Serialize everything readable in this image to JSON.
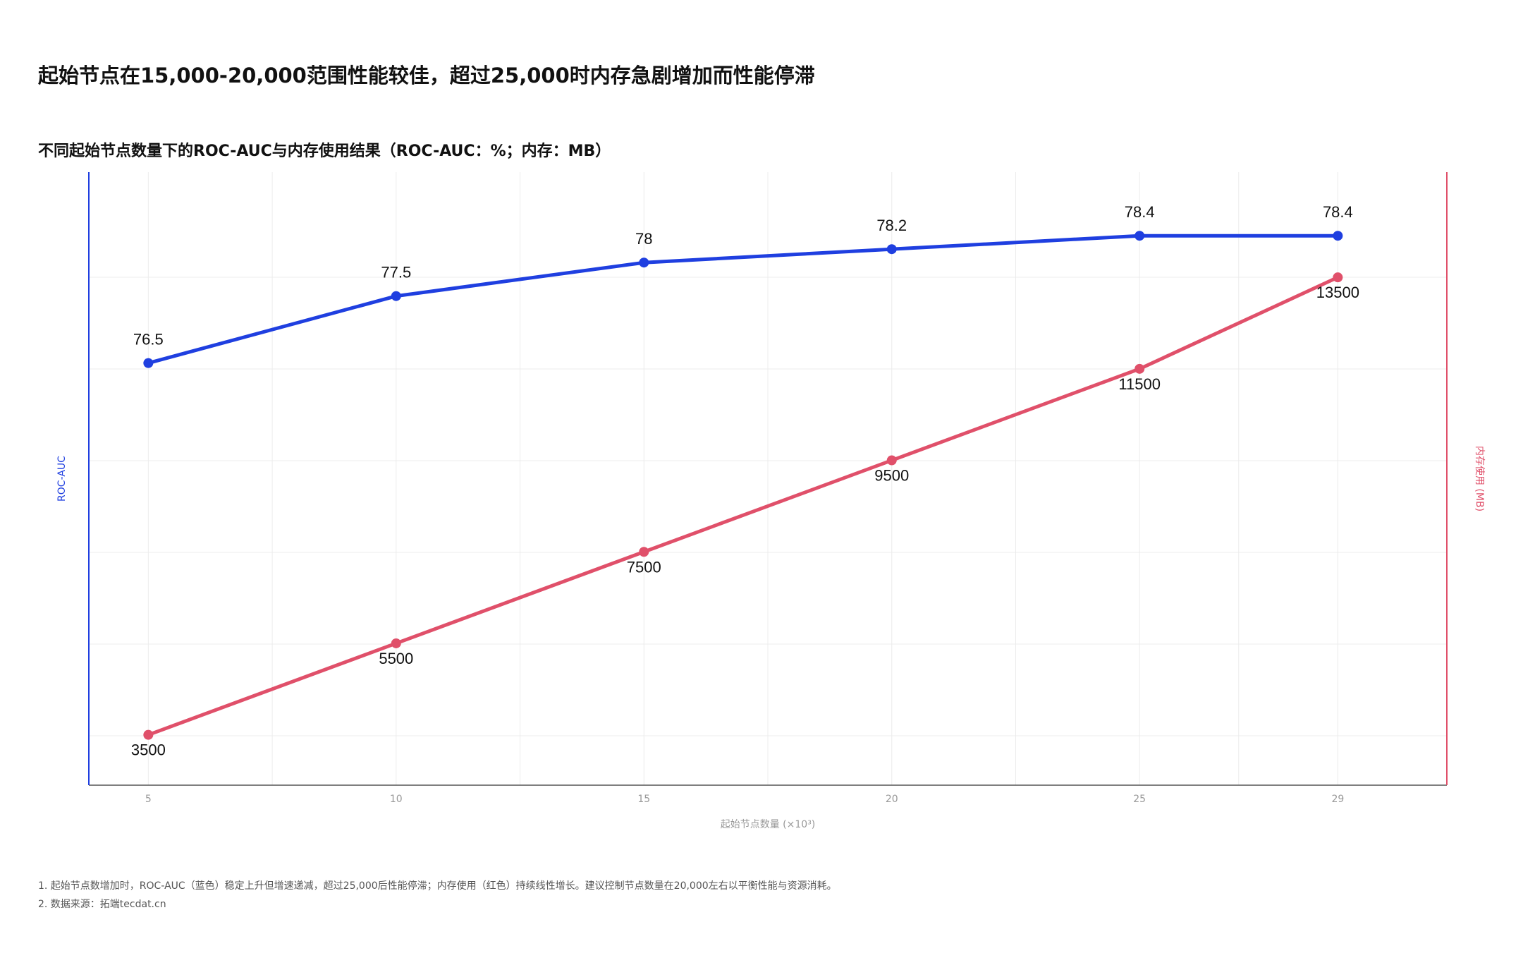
{
  "title": "起始节点在15,000-20,000范围性能较佳，超过25,000时内存急剧增加而性能停滞",
  "notes": [
    "1. 起始节点数增加时，ROC-AUC（蓝色）稳定上升但增速递减，超过25,000后性能停滞；内存使用（红色）持续线性增长。建议控制节点数量在20,000左右以平衡性能与资源消耗。",
    "2. 数据来源：拓端tecdat.cn"
  ],
  "colors": {
    "roc": "#1f3fe0",
    "memory": "#e0506a",
    "grid": "#ececec",
    "axis_text": "#999999"
  },
  "chart_data": {
    "type": "line",
    "title": "不同起始节点数量下的ROC-AUC与内存使用结果（ROC-AUC：%；内存：MB）",
    "xlabel": "起始节点数量 (×10³)",
    "x": [
      5,
      10,
      15,
      20,
      25,
      29
    ],
    "x_tick_labels": [
      "5",
      "10",
      "15",
      "20",
      "25",
      "29"
    ],
    "xlim": [
      3.8,
      31.2
    ],
    "series": [
      {
        "axis": "left",
        "axis_label": "ROC-AUC",
        "values": [
          76.5,
          77.5,
          78,
          78.2,
          78.4,
          78.4
        ],
        "labels": [
          "76.5",
          "77.5",
          "78",
          "78.2",
          "78.4",
          "78.4"
        ],
        "ylim": [
          70.2,
          79.35
        ]
      },
      {
        "axis": "right",
        "axis_label": "内存使用 (MB)",
        "values": [
          3500,
          5500,
          7500,
          9500,
          11500,
          13500
        ],
        "labels": [
          "3500",
          "5500",
          "7500",
          "9500",
          "11500",
          "13500"
        ],
        "ylim": [
          2400,
          15800
        ]
      }
    ],
    "grid": true,
    "legend": "none"
  }
}
